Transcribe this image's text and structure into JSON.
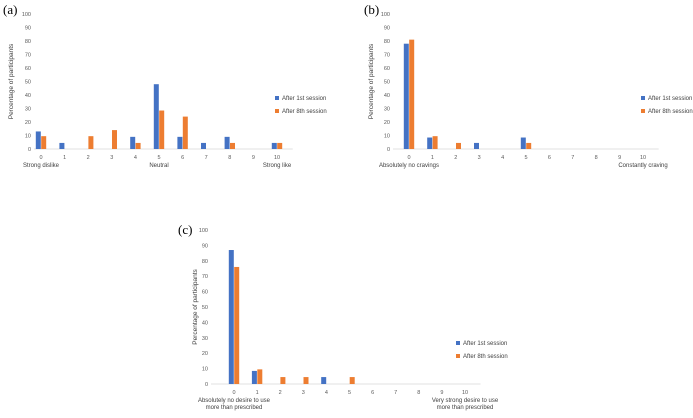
{
  "colors": {
    "series1": "#4472C4",
    "series2": "#ED7D31",
    "axis": "#D9D9D9"
  },
  "chart_data": [
    {
      "panel_label": "(a)",
      "type": "bar",
      "ylabel": "Percentage of participants",
      "ylim": [
        0,
        100
      ],
      "yticks": [
        0,
        10,
        20,
        30,
        40,
        50,
        60,
        70,
        80,
        90,
        100
      ],
      "categories": [
        "0",
        "1",
        "2",
        "3",
        "4",
        "5",
        "6",
        "7",
        "8",
        "9",
        "10"
      ],
      "annotations": [
        {
          "text": "Strong dislike",
          "category": "0"
        },
        {
          "text": "Neutral",
          "category": "5"
        },
        {
          "text": "Strong like",
          "category": "10"
        }
      ],
      "series": [
        {
          "name": "After 1st session",
          "values": [
            13,
            4.5,
            0,
            0,
            9,
            48,
            9,
            4.5,
            9,
            0,
            4.5
          ]
        },
        {
          "name": "After 8th session",
          "values": [
            9.5,
            0,
            9.5,
            14,
            4.5,
            28.5,
            24,
            0,
            4.5,
            0,
            4.5
          ]
        }
      ],
      "legend": "right"
    },
    {
      "panel_label": "(b)",
      "type": "bar",
      "ylabel": "Percentage of participants",
      "ylim": [
        0,
        100
      ],
      "yticks": [
        0,
        10,
        20,
        30,
        40,
        50,
        60,
        70,
        80,
        90,
        100
      ],
      "categories": [
        "0",
        "1",
        "2",
        "3",
        "4",
        "5",
        "6",
        "7",
        "8",
        "9",
        "10"
      ],
      "annotations": [
        {
          "text": "Absolutely no cravings",
          "category": "0"
        },
        {
          "text": "Constantly craving",
          "category": "10"
        }
      ],
      "series": [
        {
          "name": "After 1st session",
          "values": [
            78,
            8.5,
            0,
            4.5,
            0,
            8.5,
            0,
            0,
            0,
            0,
            0
          ]
        },
        {
          "name": "After 8th session",
          "values": [
            81,
            9.5,
            4.5,
            0,
            0,
            4.5,
            0,
            0,
            0,
            0,
            0
          ]
        }
      ],
      "legend": "right"
    },
    {
      "panel_label": "(c)",
      "type": "bar",
      "ylabel": "Percentage of participants",
      "ylim": [
        0,
        100
      ],
      "yticks": [
        0,
        10,
        20,
        30,
        40,
        50,
        60,
        70,
        80,
        90,
        100
      ],
      "categories": [
        "0",
        "1",
        "2",
        "3",
        "4",
        "5",
        "6",
        "7",
        "8",
        "9",
        "10"
      ],
      "annotations": [
        {
          "text": "Absolutely no desire  to use more than prescribed",
          "category": "0",
          "lines": [
            "Absolutely no desire  to use",
            "more than prescribed"
          ]
        },
        {
          "text": "Very strong desire to use more than prescribed",
          "category": "10",
          "lines": [
            "Very strong desire to use",
            "more than prescribed"
          ]
        }
      ],
      "series": [
        {
          "name": "After 1st session",
          "values": [
            87,
            8.5,
            0,
            0,
            4.5,
            0,
            0,
            0,
            0,
            0,
            0
          ]
        },
        {
          "name": "After 8th session",
          "values": [
            76,
            9.5,
            4.5,
            4.5,
            0,
            4.5,
            0,
            0,
            0,
            0,
            0
          ]
        }
      ],
      "legend": "right"
    }
  ]
}
